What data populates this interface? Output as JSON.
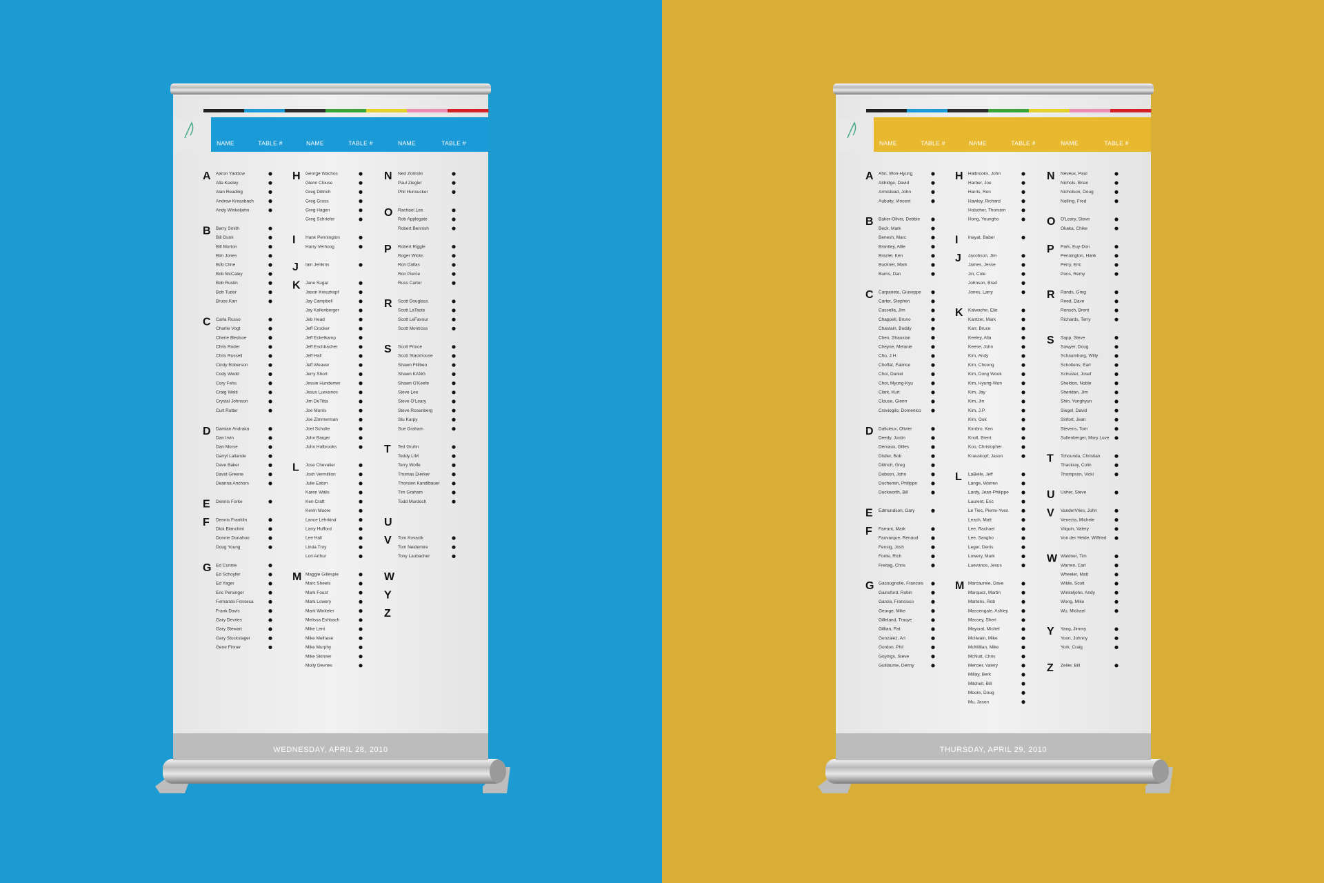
{
  "banners": [
    {
      "header": [
        "NAME",
        "TABLE #",
        "NAME",
        "TABLE #",
        "NAME",
        "TABLE #"
      ],
      "sections": [
        [
          {
            "letter": "A",
            "names": [
              "Aaron Yaddow",
              "Alla Keeley",
              "Alan Reading",
              "Andrew Kreasbach",
              "Andy Winkeljohn"
            ]
          },
          {
            "letter": "B",
            "names": [
              "Barry Smith",
              "Bill Dunk",
              "Bill Morton",
              "Bim Jones",
              "Bob Cline",
              "Bob McCaley",
              "Bob Rustin",
              "Bob Tudor",
              "Bruce Karr"
            ]
          },
          {
            "letter": "C",
            "names": [
              "Carla Russo",
              "Charlie Vogt",
              "Cherie Bledsoe",
              "Chris Roder",
              "Chris Russell",
              "Cindy Roberson",
              "Cody Wedd",
              "Cory Fehs",
              "Craig Welti",
              "Crystal Johnson",
              "Curt Rutter"
            ]
          },
          {
            "letter": "D",
            "names": [
              "Damian Andraka",
              "Dan Irvin",
              "Dan Morse",
              "Darryl Lallande",
              "Dave Baker",
              "David Greene",
              "Deanna Anchors"
            ]
          },
          {
            "letter": "E",
            "names": [
              "Dennis Forke"
            ]
          },
          {
            "letter": "F",
            "names": [
              "Dennis Franklin",
              "Dick Bianchini",
              "Donnie Donahoo",
              "Doug Young"
            ]
          },
          {
            "letter": "G",
            "names": [
              "Ed Cunnie",
              "Ed Schoyfer",
              "Ed Yager",
              "Eric Persinger",
              "Fernando Fonseca",
              "Frank Davis",
              "Gary Devries",
              "Gary Stewart",
              "Gary Stockslager",
              "Gene Finner"
            ]
          }
        ],
        [
          {
            "letter": "H",
            "names": [
              "George Wachos",
              "Glenn Clouse",
              "Greg Dittrich",
              "Greg Gross",
              "Greg Hagen",
              "Greg Schriefer"
            ]
          },
          {
            "letter": "I",
            "names": [
              "Hank Pennington",
              "Harry Verhoog"
            ]
          },
          {
            "letter": "J",
            "names": [
              "Iain Jenkins"
            ]
          },
          {
            "letter": "K",
            "names": [
              "Jane Sugar",
              "Jason Kreuzkopf",
              "Jay Campbell",
              "Jay Kallenberger",
              "Jeb Head",
              "Jeff Crocker",
              "Jeff Eckelkamp",
              "Jeff Eschbacher",
              "Jeff Hall",
              "Jeff Weaver",
              "Jerry Short",
              "Jessie Hundemer",
              "Jesus Luevanos",
              "Jim DeTitta",
              "Joe Morris",
              "Joe Zimmerman",
              "Joel Scholte",
              "John Barger",
              "John Halbrooks"
            ]
          },
          {
            "letter": "L",
            "names": [
              "Jose Chevalier",
              "Josh Vermillion",
              "Julie Eaton",
              "Karen Walls",
              "Ken Craft",
              "Kevin Moore",
              "Lance Lehrkind",
              "Larry Hufford",
              "Lee Hall",
              "Linda Troy",
              "Lori Arthur"
            ]
          },
          {
            "letter": "M",
            "names": [
              "Maggie Gillespie",
              "Marc Sheets",
              "Mark Foust",
              "Mark Lowery",
              "Mark Winkeler",
              "Melissa Eshbach",
              "Mike Lent",
              "Mike Melhase",
              "Mike Murphy",
              "Mike Skinner",
              "Molly Devries"
            ]
          }
        ],
        [
          {
            "letter": "N",
            "names": [
              "Ned Zolinski",
              "Paul Ziegler",
              "Phil Hunsucker"
            ]
          },
          {
            "letter": "O",
            "names": [
              "Rachael Lee",
              "Rob Applegate",
              "Robert Bennish"
            ]
          },
          {
            "letter": "P",
            "names": [
              "Robert Riggle",
              "Roger Wicks",
              "Ron Dallas",
              "Ron Pierce",
              "Russ Carter"
            ]
          },
          {
            "letter": "R",
            "names": [
              "Scott Douglass",
              "Scott LaTaste",
              "Scott LeFavour",
              "Scott Montross"
            ]
          },
          {
            "letter": "S",
            "names": [
              "Scott Prince",
              "Scott Stackhouse",
              "Shawn Filliben",
              "Shawn KANG",
              "Shawn O'Keefe",
              "Steve Lee",
              "Steve O'Leary",
              "Steve Rosenberg",
              "Stu Karpy",
              "Sue Graham"
            ]
          },
          {
            "letter": "T",
            "names": [
              "Ted Gruhn",
              "Teddy LIM",
              "Terry Wolfe",
              "Thomas Dierker",
              "Thorsten Kandlbauer",
              "Tim Graham",
              "Todd Murdoch"
            ]
          },
          {
            "letter": "U",
            "names": []
          },
          {
            "letter": "V",
            "names": [
              "Tom Kovacik",
              "Tom Neidemire",
              "Tony Laubacher"
            ]
          },
          {
            "letter": "W",
            "names": []
          },
          {
            "letter": "Y",
            "names": []
          },
          {
            "letter": "Z",
            "names": []
          }
        ]
      ],
      "footer": "WEDNESDAY, APRIL 28, 2010"
    },
    {
      "header": [
        "NAME",
        "TABLE #",
        "NAME",
        "TABLE #",
        "NAME",
        "TABLE #"
      ],
      "sections": [
        [
          {
            "letter": "A",
            "names": [
              "Ahn, Won-Hyung",
              "Aldridge, David",
              "Armistead, John",
              "Aubuity, Vincent"
            ]
          },
          {
            "letter": "B",
            "names": [
              "Baker-Oliver, Debbie",
              "Beck, Mark",
              "Benesh, Marc",
              "Brantley, Allie",
              "Braziel, Ken",
              "Buckner, Mark",
              "Burns, Dan"
            ]
          },
          {
            "letter": "C",
            "names": [
              "Carpaneto, Giuseppe",
              "Carter, Stephen",
              "Cassella, Jim",
              "Chappell, Bruno",
              "Chastain, Buddy",
              "Chen, Shaoxian",
              "Cheyne, Melanie",
              "Cho, J.H.",
              "Choffat, Fabrice",
              "Choi, Daniel",
              "Choi, Myung-Kyu",
              "Clark, Kurt",
              "Clouse, Glenn",
              "Craviogilo, Domenico"
            ]
          },
          {
            "letter": "D",
            "names": [
              "Dalicieux, Olivier",
              "Deedy, Justin",
              "Dervaux, Gilles",
              "Distler, Bob",
              "Dittrich, Greg",
              "Dobson, John",
              "Duchemin, Philippe",
              "Duckworth, Bill"
            ]
          },
          {
            "letter": "E",
            "names": [
              "Edmundson, Gary"
            ]
          },
          {
            "letter": "F",
            "names": [
              "Farrant, Mark",
              "Fauvarque, Renaud",
              "Fensig, Josh",
              "Fonte, Rich",
              "Freitag, Chris"
            ]
          },
          {
            "letter": "G",
            "names": [
              "Gacougnolle, Francois",
              "Gainsford, Robin",
              "Garcia, Francisco",
              "George, Mike",
              "Gilleland, Tracye",
              "Gillian, Pat",
              "Gonzalez, Art",
              "Gordon, Phil",
              "Goyings, Steve",
              "Guillaume, Denny"
            ]
          }
        ],
        [
          {
            "letter": "H",
            "names": [
              "Halbrooks, John",
              "Harber, Joe",
              "Harris, Ron",
              "Hawley, Richard",
              "Holscher, Thorsten",
              "Hong, Youngho"
            ]
          },
          {
            "letter": "I",
            "names": [
              "Inayat, Baber"
            ]
          },
          {
            "letter": "J",
            "names": [
              "Jacobson, Jim",
              "James, Jesse",
              "Jin, Cole",
              "Johnson, Brad",
              "Jones, Larry"
            ]
          },
          {
            "letter": "K",
            "names": [
              "Kalwache, Elie",
              "Kantzer, Mark",
              "Karr, Bruce",
              "Keeley, Alla",
              "Keese, John",
              "Kim, Andy",
              "Kim, Choong",
              "Kim, Dong Wook",
              "Kim, Hyung-Won",
              "Kim, Jay",
              "Kim, Jin",
              "Kim, J.P.",
              "Kim, Ook",
              "Kimbro, Ken",
              "Knoll, Brent",
              "Koo, Christopher",
              "Krauskopf, Jason"
            ]
          },
          {
            "letter": "L",
            "names": [
              "LaBelle, Jeff",
              "Lange, Warren",
              "Lardy, Jean-Philippe",
              "Laurent, Eric",
              "Le Tiec, Pierre-Yves",
              "Leach, Matt",
              "Lee, Rachael",
              "Lee, Sangho",
              "Leger, Denis",
              "Lowery, Mark",
              "Luevanos, Jesus"
            ]
          },
          {
            "letter": "M",
            "names": [
              "Marcaurele, Dave",
              "Marquez, Martin",
              "Martens, Rob",
              "Massengale, Ashley",
              "Massey, Sheri",
              "Mayoral, Michel",
              "McIlwain, Mike",
              "McMillian, Mike",
              "McNutt, Chris",
              "Mercier, Valery",
              "Millay, Berk",
              "Mitchell, Bill",
              "Moore, Doug",
              "Mu, Jason"
            ]
          }
        ],
        [
          {
            "letter": "N",
            "names": [
              "Neveux, Paul",
              "Nichols, Brian",
              "Nicholson, Doug",
              "Notling, Fred"
            ]
          },
          {
            "letter": "O",
            "names": [
              "O'Leary, Steve",
              "Okaka, Chike"
            ]
          },
          {
            "letter": "P",
            "names": [
              "Park, Euy-Don",
              "Pennington, Hank",
              "Perry, Eric",
              "Pons, Remy"
            ]
          },
          {
            "letter": "R",
            "names": [
              "Rands, Greg",
              "Reed, Dave",
              "Rensch, Brent",
              "Richards, Terry"
            ]
          },
          {
            "letter": "S",
            "names": [
              "Sapp, Steve",
              "Sawyer, Doug",
              "Schaumburg, Willy",
              "Scholtens, Earl",
              "Schuster, Josef",
              "Sheldon, Noble",
              "Sheridan, Jim",
              "Shin, Yonghyun",
              "Siegel, David",
              "Sinfort, Jean",
              "Stevens, Tom",
              "Sullenberger, Mary Love"
            ]
          },
          {
            "letter": "T",
            "names": [
              "Tchounda, Christian",
              "Thackray, Colin",
              "Thompson, Vicki"
            ]
          },
          {
            "letter": "U",
            "names": [
              "Usher, Steve"
            ]
          },
          {
            "letter": "V",
            "names": [
              "VanderVries, John",
              "Venezia, Michele",
              "Vilquin, Valery",
              "Von der Heide, Wilfried"
            ]
          },
          {
            "letter": "W",
            "names": [
              "Waldner, Tim",
              "Warren, Carl",
              "Wheeler, Matt",
              "Wilde, Scott",
              "Winkeljohn, Andy",
              "Wong, Mike",
              "Wu, Michael"
            ]
          },
          {
            "letter": "Y",
            "names": [
              "Yang, Jimmy",
              "Yoon, Johnny",
              "York, Craig"
            ]
          },
          {
            "letter": "Z",
            "names": [
              "Zeller, Bill"
            ]
          }
        ]
      ],
      "footer": "THURSDAY, APRIL 29, 2010"
    }
  ]
}
